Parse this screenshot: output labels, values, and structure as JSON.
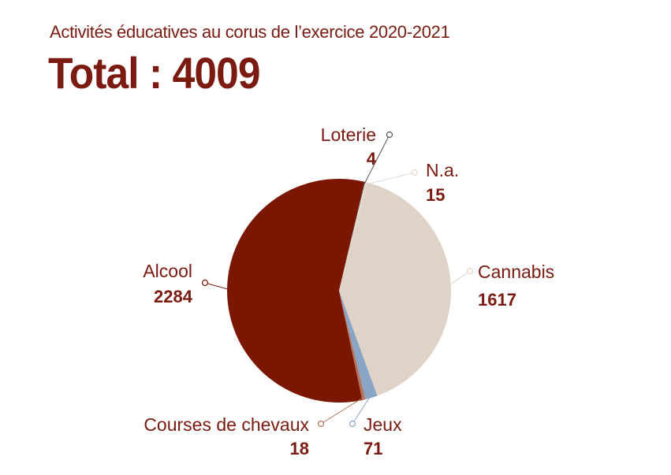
{
  "header": {
    "subtitle": "Activités éducatives au corus de l’exercice 2020-2021",
    "total_label": "Total : 4009"
  },
  "chart_data": {
    "type": "pie",
    "title": "Activités éducatives au corus de l’exercice 2020-2021",
    "total": 4009,
    "slices": [
      {
        "label": "Alcool",
        "value": 2284,
        "color": "#7b1700"
      },
      {
        "label": "Loterie",
        "value": 4,
        "color": "#3b3b3b"
      },
      {
        "label": "N.a.",
        "value": 15,
        "color": "#e6d8cc"
      },
      {
        "label": "Cannabis",
        "value": 1617,
        "color": "#dfd3c7"
      },
      {
        "label": "Jeux",
        "value": 71,
        "color": "#8aa4c6"
      },
      {
        "label": "Courses de chevaux",
        "value": 18,
        "color": "#b5735a"
      }
    ],
    "legend": "callouts",
    "text_color": "#7a1a10"
  }
}
